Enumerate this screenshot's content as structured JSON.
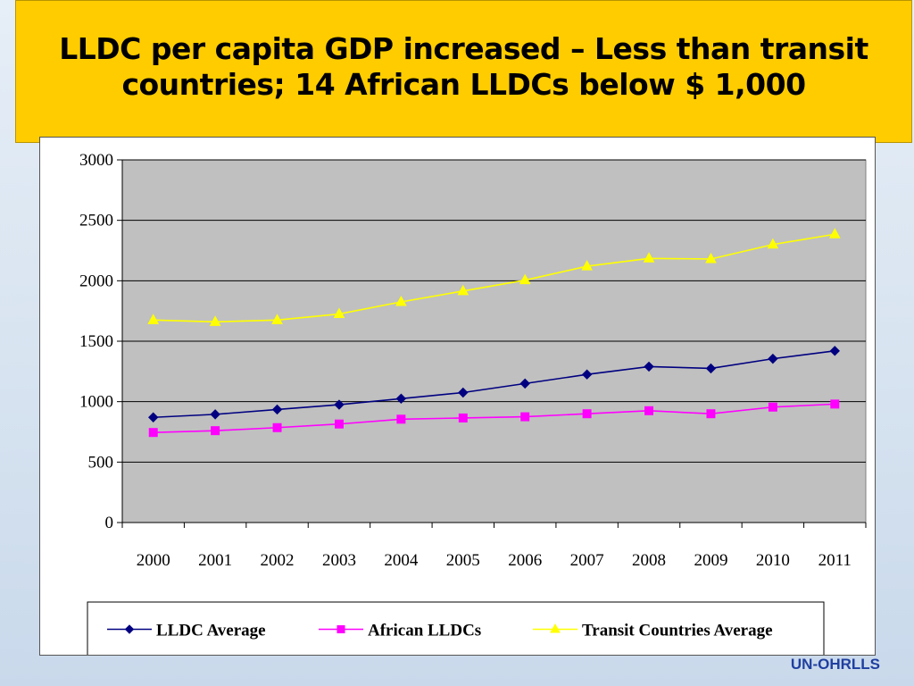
{
  "header": {
    "title": "LLDC per capita GDP increased – Less than transit countries; 14 African LLDCs below $ 1,000"
  },
  "footer": {
    "org": "UN-OHRLLS"
  },
  "chart_data": {
    "type": "line",
    "title": "",
    "xlabel": "",
    "ylabel": "",
    "categories": [
      "2000",
      "2001",
      "2002",
      "2003",
      "2004",
      "2005",
      "2006",
      "2007",
      "2008",
      "2009",
      "2010",
      "2011"
    ],
    "ylim": [
      0,
      3000
    ],
    "yticks": [
      0,
      500,
      1000,
      1500,
      2000,
      2500,
      3000
    ],
    "grid": true,
    "legend_position": "bottom",
    "series": [
      {
        "name": "LLDC Average",
        "color": "#000080",
        "marker": "diamond",
        "values": [
          870,
          895,
          935,
          975,
          1025,
          1075,
          1150,
          1225,
          1290,
          1275,
          1355,
          1420
        ]
      },
      {
        "name": "African LLDCs",
        "color": "#ff00ff",
        "marker": "square",
        "values": [
          745,
          760,
          785,
          815,
          855,
          865,
          875,
          900,
          925,
          900,
          955,
          980
        ]
      },
      {
        "name": "Transit Countries Average",
        "color": "#ffff00",
        "marker": "triangle",
        "values": [
          1675,
          1660,
          1675,
          1725,
          1825,
          1915,
          2005,
          2120,
          2185,
          2180,
          2300,
          2385
        ]
      }
    ]
  }
}
